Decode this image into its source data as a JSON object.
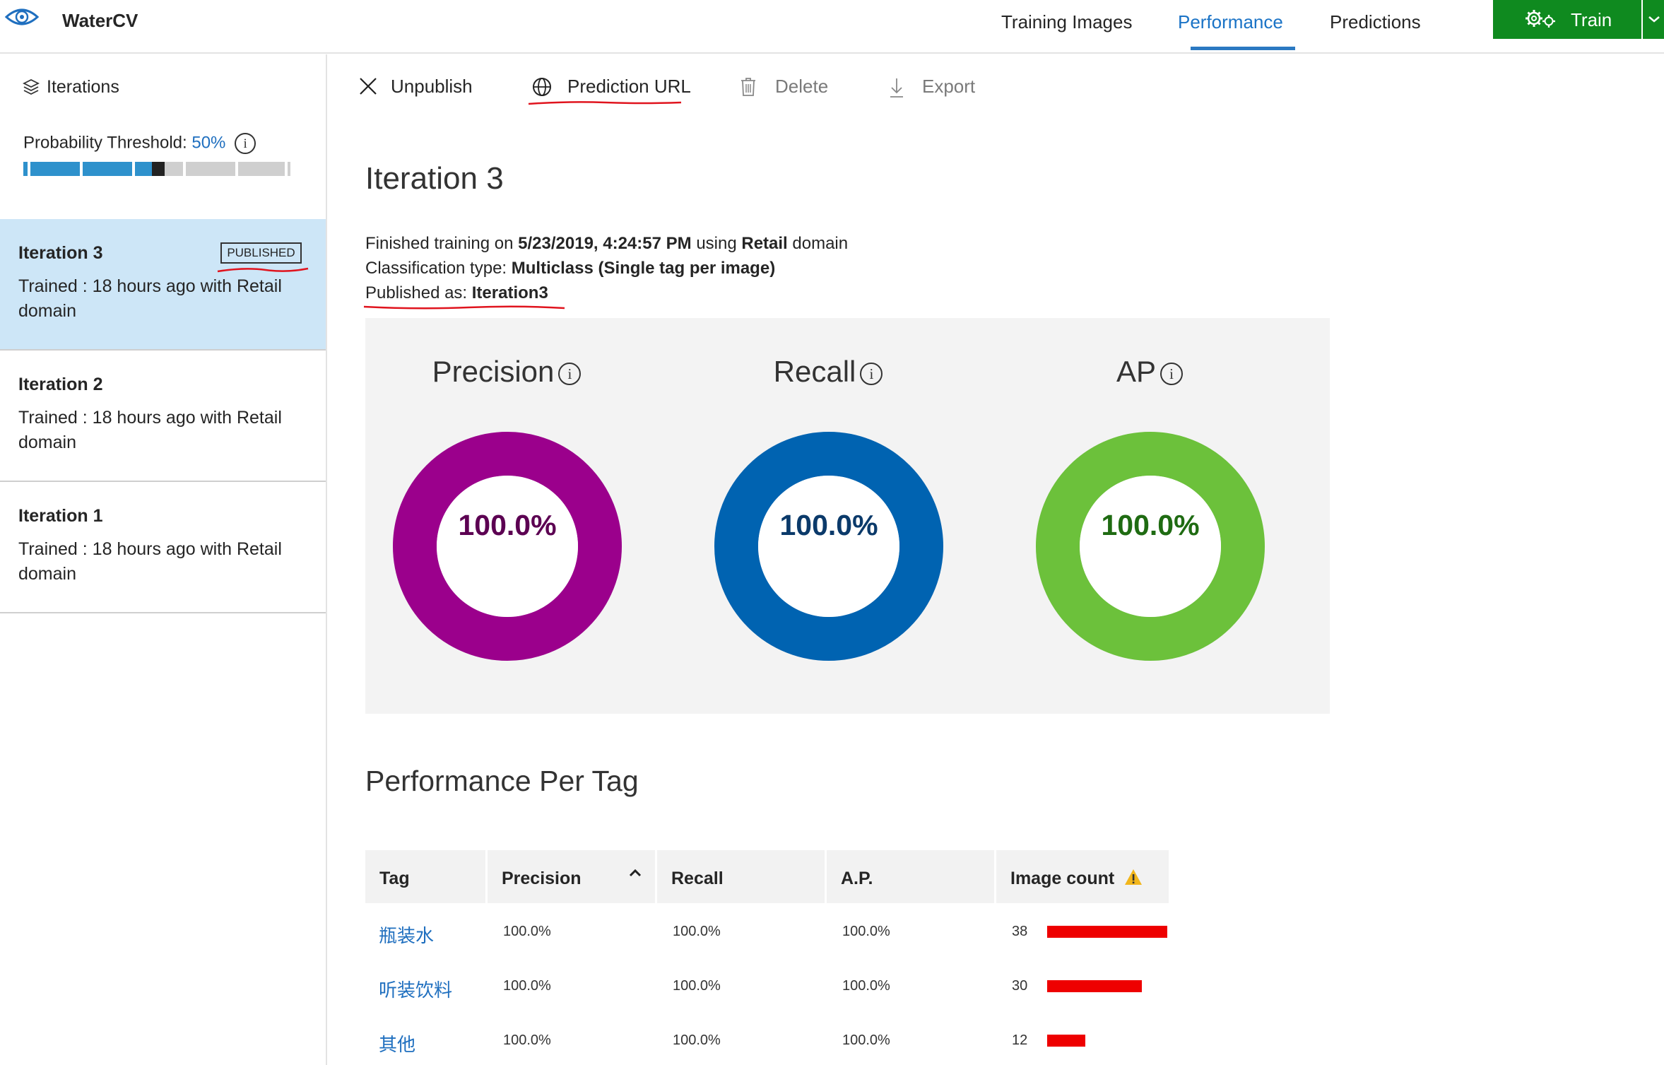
{
  "app": {
    "name": "WaterCV",
    "nav": [
      {
        "label": "Training Images",
        "active": false
      },
      {
        "label": "Performance",
        "active": true
      },
      {
        "label": "Predictions",
        "active": false
      }
    ],
    "train_label": "Train",
    "accent": "#1a73c6",
    "train_color": "#0f8a1f"
  },
  "sidebar": {
    "heading": "Iterations",
    "threshold_label": "Probability Threshold:",
    "threshold_value": "50%",
    "threshold_fraction": 0.5,
    "iterations": [
      {
        "name": "Iteration 3",
        "badge": "PUBLISHED",
        "desc": "Trained : 18 hours ago with Retail domain",
        "selected": true
      },
      {
        "name": "Iteration 2",
        "badge": "",
        "desc": "Trained : 18 hours ago with Retail domain",
        "selected": false
      },
      {
        "name": "Iteration 1",
        "badge": "",
        "desc": "Trained : 18 hours ago with Retail domain",
        "selected": false
      }
    ]
  },
  "toolbar": {
    "unpublish": "Unpublish",
    "prediction_url": "Prediction URL",
    "delete": "Delete",
    "export": "Export"
  },
  "detail": {
    "title": "Iteration 3",
    "line1_prefix": "Finished training on",
    "line1_date": "5/23/2019, 4:24:57 PM",
    "line1_mid": "using",
    "line1_domain": "Retail",
    "line1_suffix": "domain",
    "line2_prefix": "Classification type:",
    "line2_value": "Multiclass (Single tag per image)",
    "line3_prefix": "Published as:",
    "line3_value": "Iteration3"
  },
  "metrics": [
    {
      "label": "Precision",
      "value": "100.0%",
      "fraction": 1.0,
      "color": "#9b008c",
      "text_color": "#5c0052"
    },
    {
      "label": "Recall",
      "value": "100.0%",
      "fraction": 1.0,
      "color": "#0063b1",
      "text_color": "#0b3a6a"
    },
    {
      "label": "AP",
      "value": "100.0%",
      "fraction": 1.0,
      "color": "#6cc13b",
      "text_color": "#1f6b12"
    }
  ],
  "per_tag": {
    "title": "Performance Per Tag",
    "columns": [
      "Tag",
      "Precision",
      "Recall",
      "A.P.",
      "Image count"
    ],
    "rows": [
      {
        "tag": "瓶装水",
        "precision": "100.0%",
        "recall": "100.0%",
        "ap": "100.0%",
        "count": "38",
        "count_value": 38
      },
      {
        "tag": "听装饮料",
        "precision": "100.0%",
        "recall": "100.0%",
        "ap": "100.0%",
        "count": "30",
        "count_value": 30
      },
      {
        "tag": "其他",
        "precision": "100.0%",
        "recall": "100.0%",
        "ap": "100.0%",
        "count": "12",
        "count_value": 12
      }
    ],
    "bar_color": "#ee0000",
    "warning_color": "#f2b61b"
  }
}
